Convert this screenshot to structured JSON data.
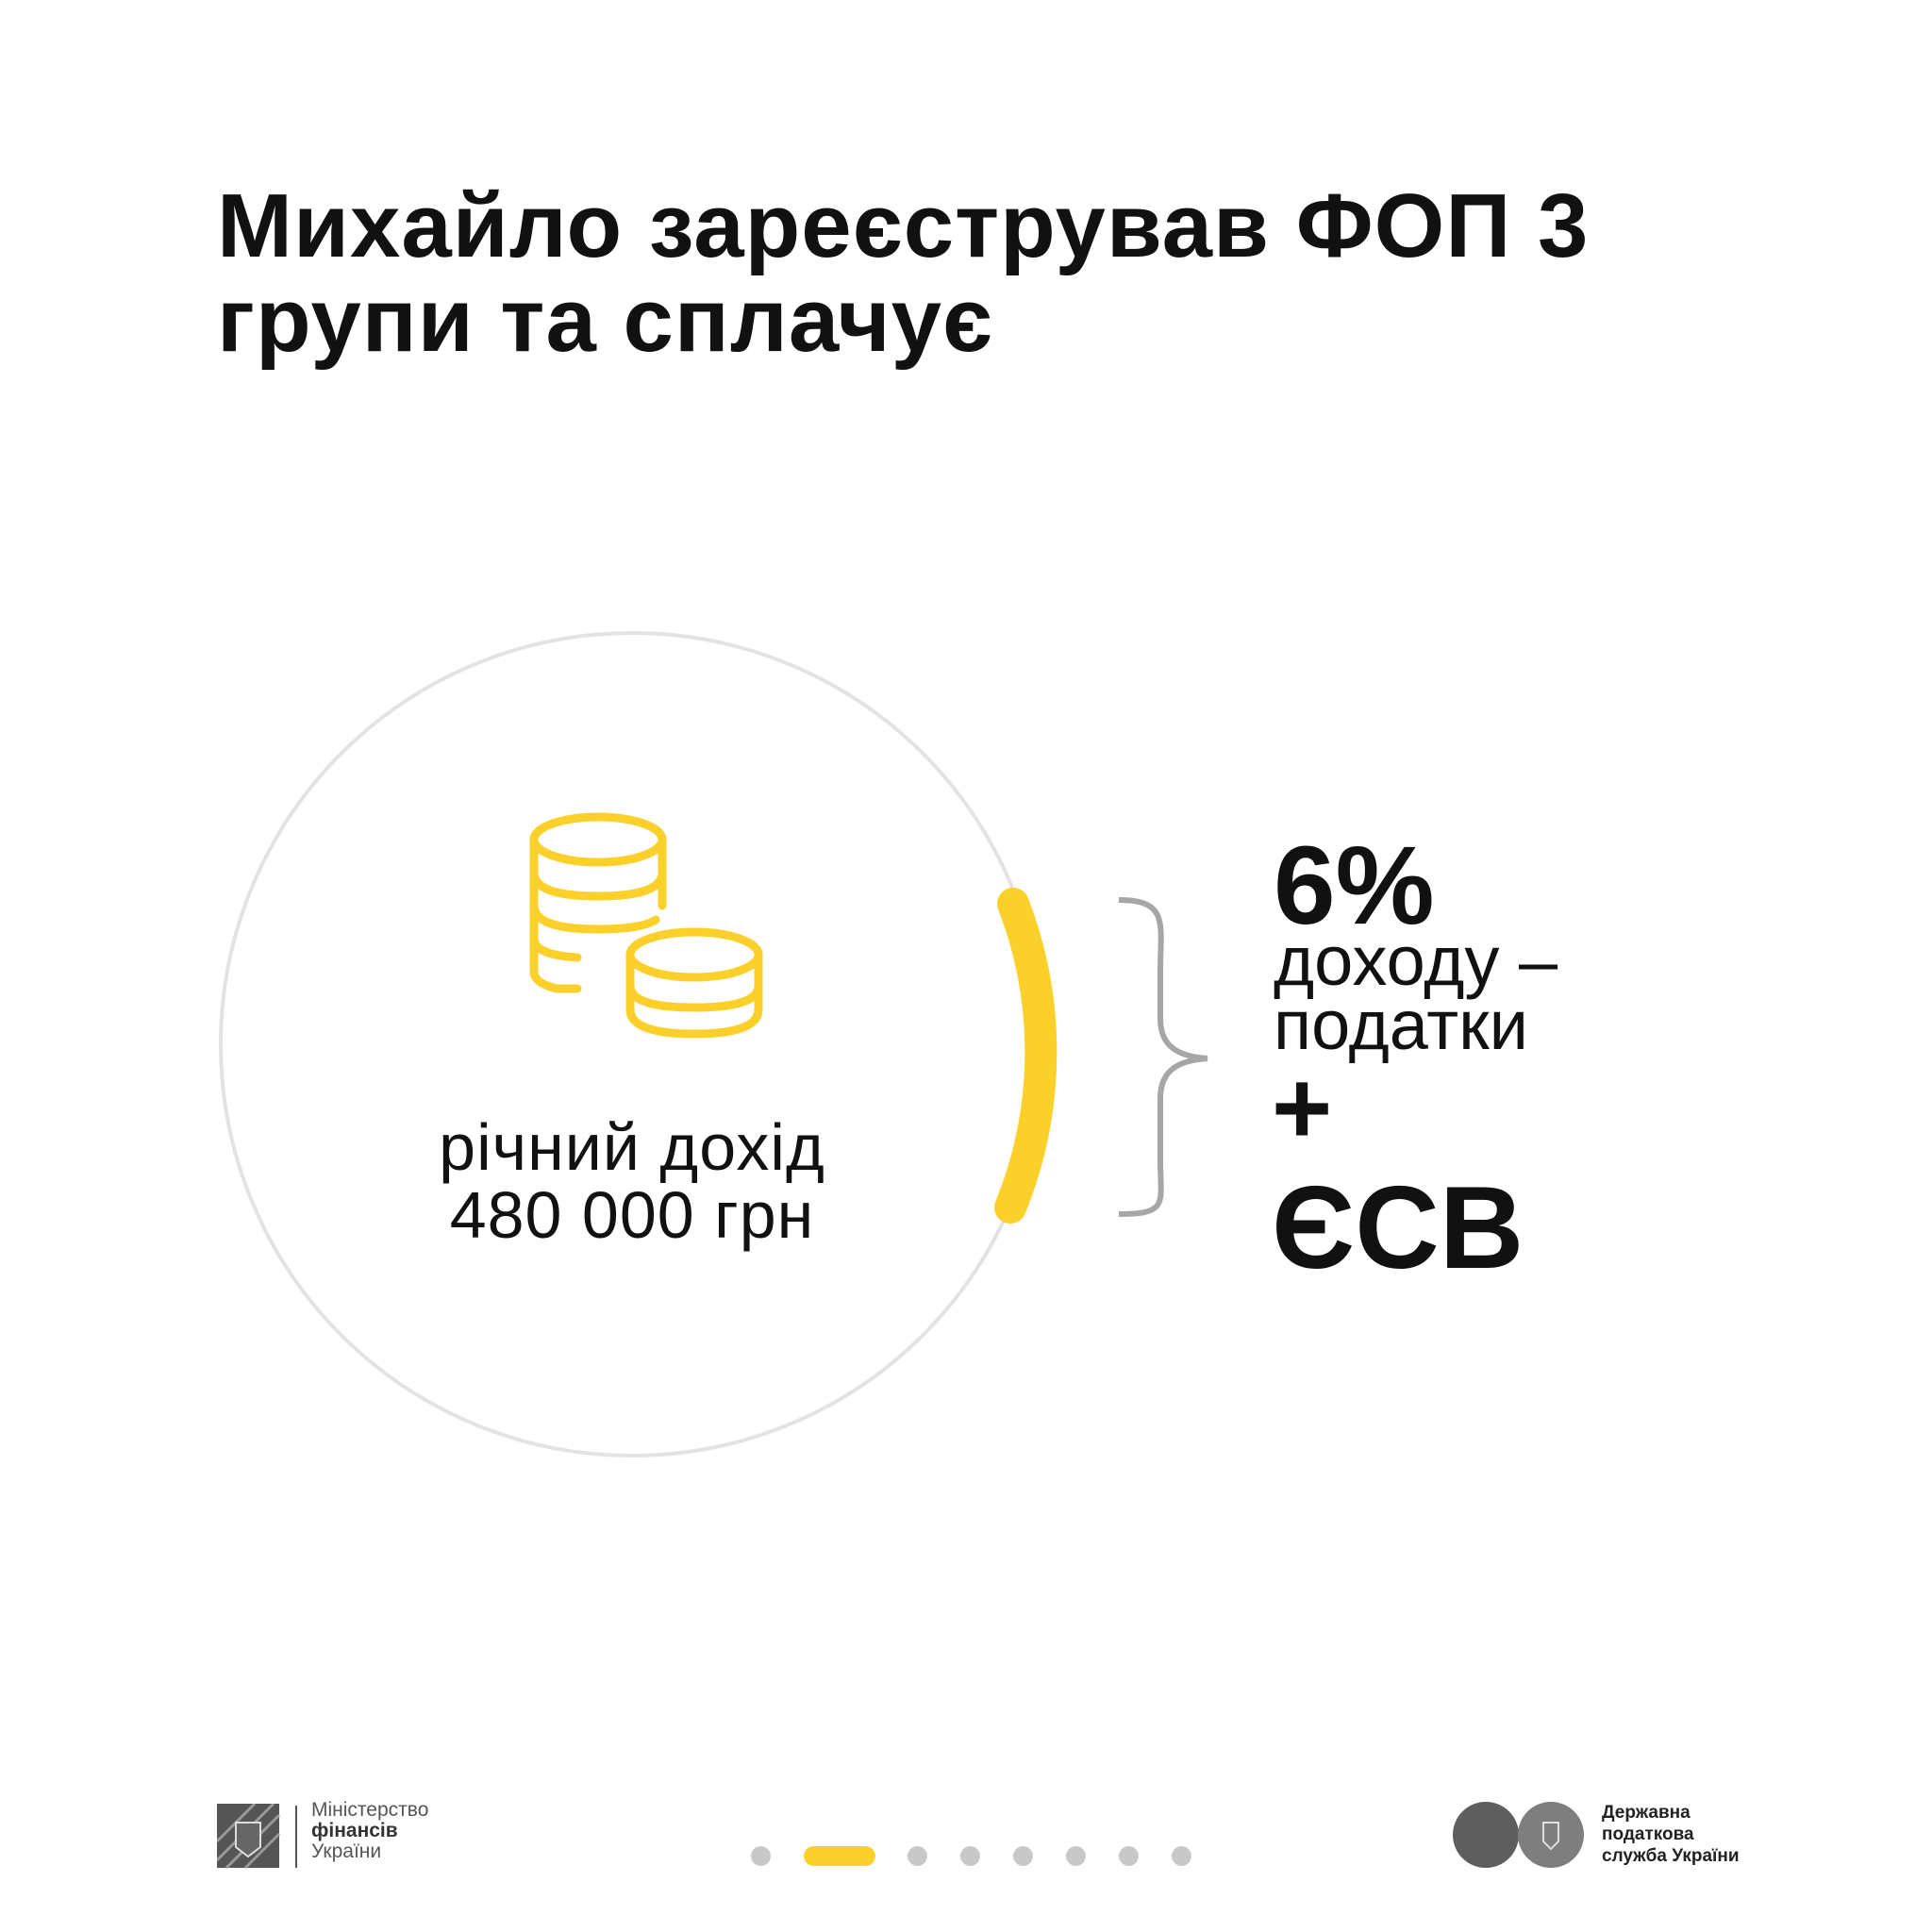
{
  "title": {
    "line1": "Михайло зареєстрував ФОП 3",
    "line2": "групи та сплачує"
  },
  "income": {
    "line1": "річний дохід",
    "line2": "480 000 грн",
    "icon": "coins-icon"
  },
  "tax": {
    "rate": "6%",
    "desc_line1": "доходу –",
    "desc_line2": "податки",
    "plus": "+",
    "esv": "ЄСВ"
  },
  "pagination": {
    "total": 8,
    "active": 2
  },
  "footer": {
    "ministry": {
      "line1": "Міністерство",
      "line2": "фінансів",
      "line3": "України"
    },
    "tax_service": {
      "line1": "Державна",
      "line2": "податкова",
      "line3": "служба України"
    }
  },
  "colors": {
    "accent": "#fcd02a",
    "circle": "#e3e3e3",
    "brace": "#a6a6a6",
    "dot": "#c8c8c8"
  }
}
